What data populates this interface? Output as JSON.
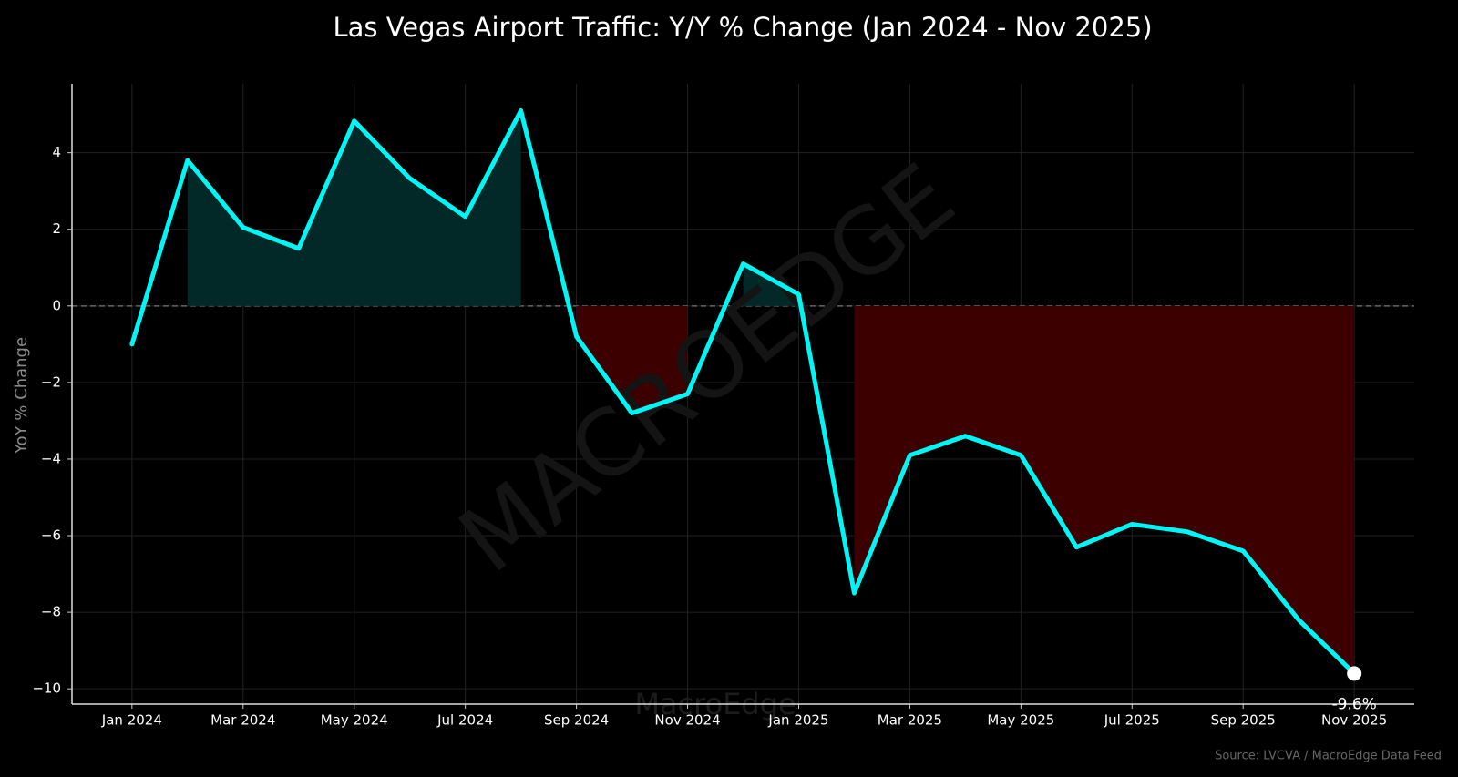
{
  "chart_data": {
    "type": "line",
    "title": "Las Vegas Airport Traffic: Y/Y % Change (Jan 2024 - Nov 2025)",
    "y_label": "YoY % Change",
    "watermark": "MACROEDGE",
    "watermark_small": "MacroEdge",
    "source": "Source: LVCVA / MacroEdge Data Feed",
    "categories": [
      "Jan 2024",
      null,
      "Mar 2024",
      null,
      "May 2024",
      null,
      "Jul 2024",
      null,
      "Sep 2024",
      null,
      "Nov 2024",
      null,
      "Jan 2025",
      null,
      "Mar 2025",
      null,
      "May 2025",
      null,
      "Jul 2025",
      null,
      "Sep 2025",
      null,
      "Nov 2025"
    ],
    "series": [
      {
        "name": "YoY % Change",
        "color": "#00f5f5",
        "values": [
          -1.0,
          3.8,
          2.05,
          1.5,
          4.83,
          3.33,
          2.33,
          5.1,
          -0.8,
          -2.8,
          -2.3,
          1.1,
          0.3,
          -7.5,
          -3.9,
          -3.4,
          -3.9,
          -6.3,
          -5.7,
          -5.9,
          -6.4,
          -8.2,
          -9.6
        ],
        "value_labels": [
          null,
          null,
          null,
          null,
          null,
          null,
          null,
          null,
          null,
          null,
          null,
          null,
          null,
          null,
          null,
          null,
          null,
          null,
          null,
          null,
          null,
          null,
          "-9.6%"
        ]
      }
    ],
    "positive_fill": "#022828",
    "negative_fill": "#3c0000",
    "ylim": [
      -10.4,
      5.8
    ],
    "yticks": [
      {
        "value": -10,
        "label": "−10"
      },
      {
        "value": -8,
        "label": "−8"
      },
      {
        "value": -6,
        "label": "−6"
      },
      {
        "value": -4,
        "label": "−4"
      },
      {
        "value": -2,
        "label": "−2"
      },
      0,
      2,
      4
    ],
    "grid": true
  }
}
